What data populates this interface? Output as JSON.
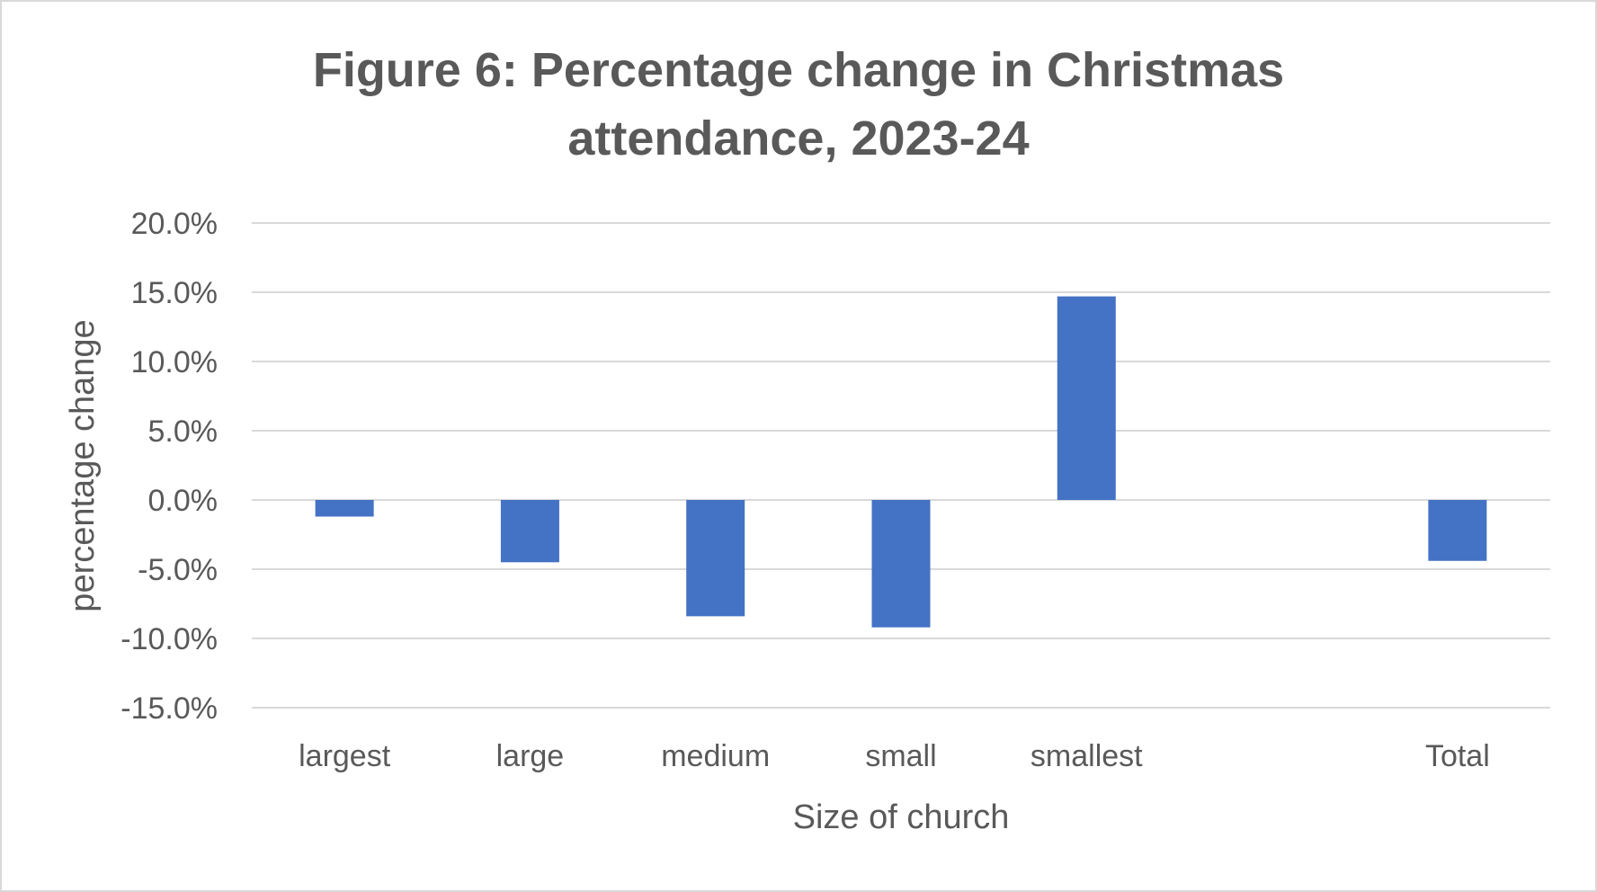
{
  "chart_data": {
    "type": "bar",
    "title_lines": [
      "Figure 6: Percentage change in Christmas",
      "attendance,  2023-24"
    ],
    "xlabel": "Size of church",
    "ylabel": "percentage change",
    "categories": [
      "largest",
      "large",
      "medium",
      "small",
      "smallest",
      "",
      "Total"
    ],
    "values": [
      -1.2,
      -4.5,
      -8.4,
      -9.2,
      14.7,
      null,
      -4.4
    ],
    "ylim": [
      -15,
      20
    ],
    "yticks": [
      20,
      15,
      10,
      5,
      0,
      -5,
      -10,
      -15
    ],
    "ytick_labels": [
      "20.0%",
      "15.0%",
      "10.0%",
      "5.0%",
      "0.0%",
      "-5.0%",
      "-10.0%",
      "-15.0%"
    ],
    "grid": true,
    "bar_color": "#4472c4"
  }
}
